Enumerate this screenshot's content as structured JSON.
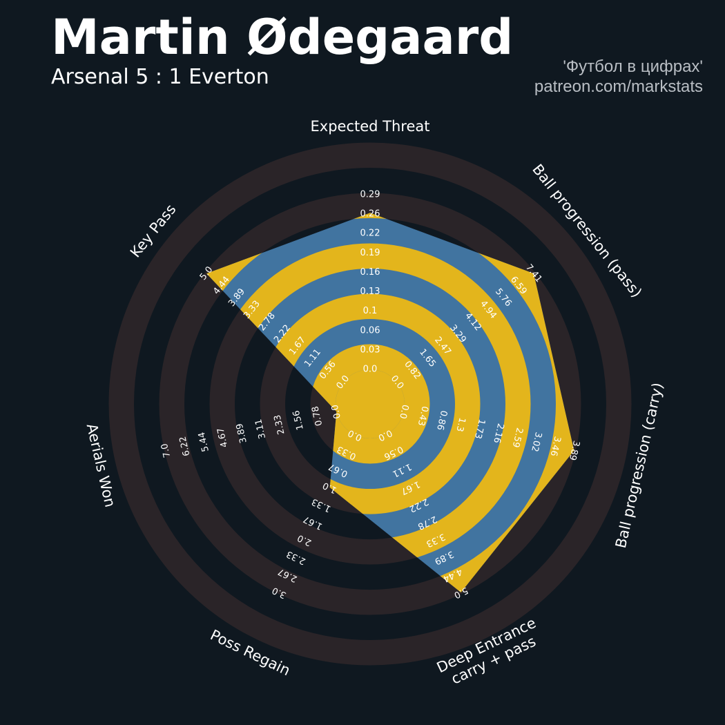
{
  "header": {
    "player_name": "Martin Ødegaard",
    "match": "Arsenal 5 : 1 Everton",
    "credit_line1": "'Футбол в цифрах'",
    "credit_line2": "patreon.com/markstats"
  },
  "colors": {
    "background": "#0f1820",
    "ring_dark": "#2a2428",
    "polygon_blue": "#4174a0",
    "ring_yellow": "#e3b51c",
    "label": "#ffffff"
  },
  "chart_data": {
    "type": "radar",
    "title": "Martin Ødegaard",
    "subtitle": "Arsenal 5 : 1 Everton",
    "params": [
      {
        "name": "Expected Threat",
        "label_lines": [
          "Expected Threat"
        ],
        "min": 0,
        "max": 0.29,
        "ticks": [
          "0.0",
          "0.03",
          "0.06",
          "0.1",
          "0.13",
          "0.16",
          "0.19",
          "0.22",
          "0.26",
          "0.29"
        ],
        "value": 0.26
      },
      {
        "name": "Ball progression (pass)",
        "label_lines": [
          "Ball progression (pass)"
        ],
        "min": 0,
        "max": 7.41,
        "ticks": [
          "0.0",
          "0.82",
          "1.65",
          "2.47",
          "3.29",
          "4.12",
          "4.94",
          "5.76",
          "6.59",
          "7.41"
        ],
        "value": 7.41
      },
      {
        "name": "Ball progression (carry)",
        "label_lines": [
          "Ball progression (carry)"
        ],
        "min": 0,
        "max": 3.89,
        "ticks": [
          "0.0",
          "0.43",
          "0.86",
          "1.3",
          "1.73",
          "2.16",
          "2.59",
          "3.02",
          "3.46",
          "3.89"
        ],
        "value": 3.89
      },
      {
        "name": "Deep Entrance carry + pass",
        "label_lines": [
          "Deep Entrance",
          "carry + pass"
        ],
        "min": 0,
        "max": 5.0,
        "ticks": [
          "0.0",
          "0.56",
          "1.11",
          "1.67",
          "2.22",
          "2.78",
          "3.33",
          "3.89",
          "4.44",
          "5.0"
        ],
        "value": 5.0
      },
      {
        "name": "Poss Regain",
        "label_lines": [
          "Poss Regain"
        ],
        "min": 0,
        "max": 3.0,
        "ticks": [
          "0.0",
          "0.33",
          "0.67",
          "1.0",
          "1.33",
          "1.67",
          "2.0",
          "2.33",
          "2.67",
          "3.0"
        ],
        "value": 1.0
      },
      {
        "name": "Aerials Won",
        "label_lines": [
          "Aerials Won"
        ],
        "min": 0,
        "max": 7.0,
        "ticks": [
          "0.0",
          "0.78",
          "1.56",
          "2.33",
          "3.11",
          "3.89",
          "4.67",
          "5.44",
          "6.22",
          "7.0"
        ],
        "value": 0.0
      },
      {
        "name": "Key Pass",
        "label_lines": [
          "Key Pass"
        ],
        "min": 0,
        "max": 5.0,
        "ticks": [
          "0.0",
          "0.56",
          "1.11",
          "1.67",
          "2.22",
          "2.78",
          "3.33",
          "3.89",
          "4.44",
          "5.0"
        ],
        "value": 5.0
      }
    ]
  }
}
